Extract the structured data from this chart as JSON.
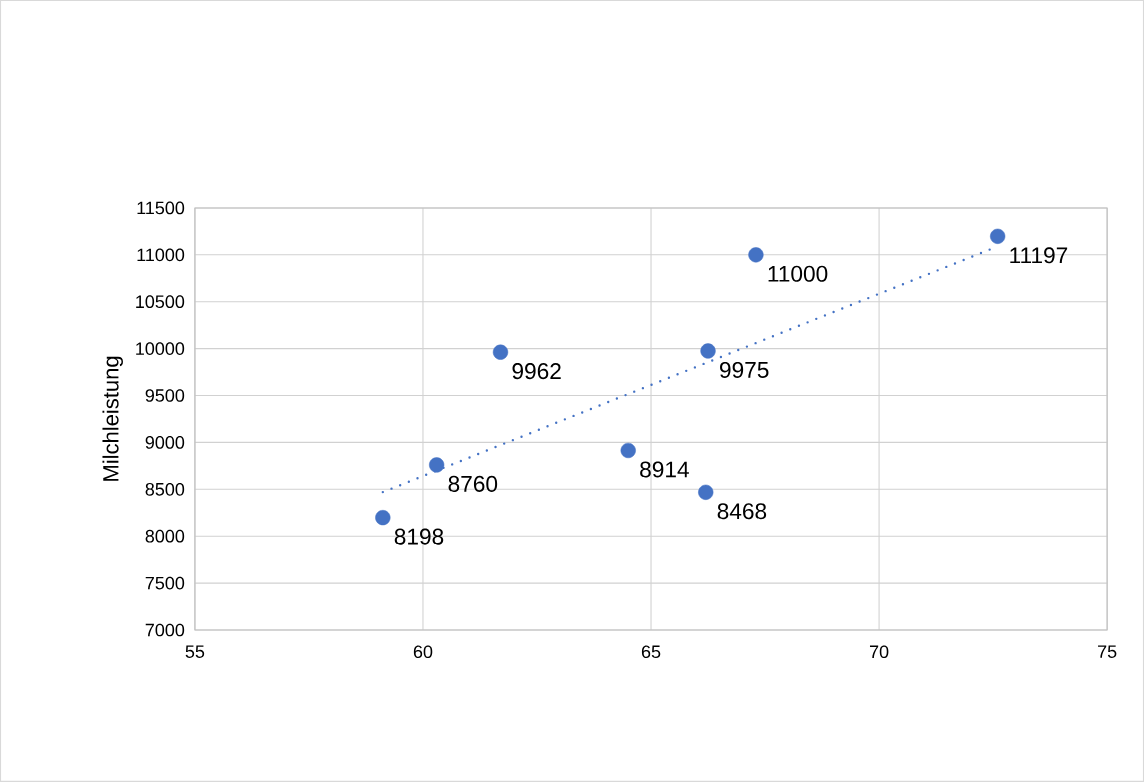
{
  "chart_data": {
    "type": "scatter",
    "ylabel": "Milchleistung",
    "series": [
      {
        "color": "#4472c4",
        "marker": "circle",
        "x": [
          59.12,
          60.3,
          61.7,
          64.5,
          66.25,
          66.2,
          67.3,
          72.6
        ],
        "values": [
          8198,
          8760,
          9962,
          8914,
          9975,
          8468,
          11000,
          11197
        ],
        "value_labels": [
          "8198",
          "8760",
          "9962",
          "8914",
          "9975",
          "8468",
          "11000",
          "11197"
        ]
      },
      {
        "type": "line",
        "color": "#4472c4",
        "line_style": "dotted",
        "marker": "none",
        "x": [
          59.12,
          72.6
        ],
        "values": [
          8470,
          11090
        ]
      }
    ],
    "xlim": [
      55,
      75
    ],
    "xticks": [
      55,
      60,
      65,
      70,
      75
    ],
    "ylim": [
      7000,
      11500
    ],
    "yticks": [
      7000,
      7500,
      8000,
      8500,
      9000,
      9500,
      10000,
      10500,
      11000,
      11500
    ],
    "grid": true
  }
}
